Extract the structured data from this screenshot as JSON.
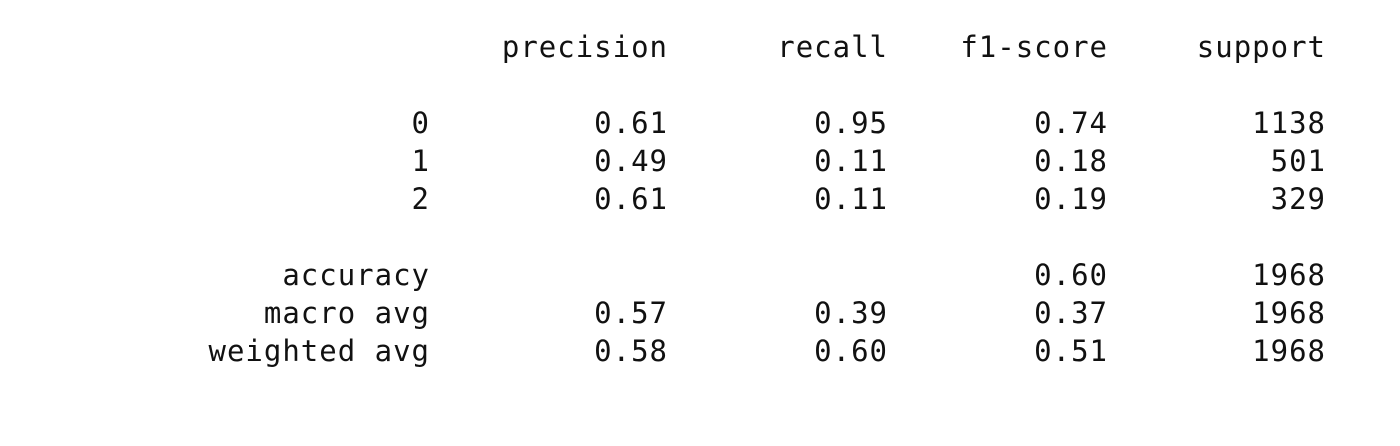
{
  "header": {
    "precision": "precision",
    "recall": "recall",
    "f1": "f1-score",
    "support": "support"
  },
  "classes": [
    {
      "label": "0",
      "precision": "0.61",
      "recall": "0.95",
      "f1": "0.74",
      "support": "1138"
    },
    {
      "label": "1",
      "precision": "0.49",
      "recall": "0.11",
      "f1": "0.18",
      "support": "501"
    },
    {
      "label": "2",
      "precision": "0.61",
      "recall": "0.11",
      "f1": "0.19",
      "support": "329"
    }
  ],
  "accuracy": {
    "label": "accuracy",
    "f1": "0.60",
    "support": "1968"
  },
  "macro_avg": {
    "label": "macro avg",
    "precision": "0.57",
    "recall": "0.39",
    "f1": "0.37",
    "support": "1968"
  },
  "weighted_avg": {
    "label": "weighted avg",
    "precision": "0.58",
    "recall": "0.60",
    "f1": "0.51",
    "support": "1968"
  }
}
